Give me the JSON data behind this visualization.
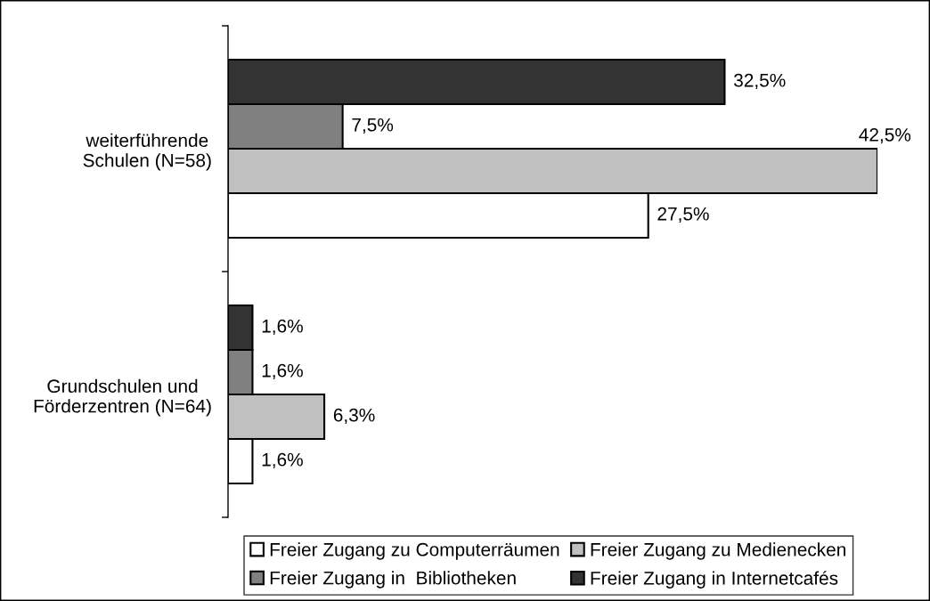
{
  "chart_data": {
    "type": "bar",
    "orientation": "horizontal",
    "categories": [
      "weiterführende\nSchulen (N=58)",
      "Grundschulen und\nFörderzentren (N=64)"
    ],
    "series": [
      {
        "name": "Freier Zugang zu Computerräumen",
        "color": "#ffffff",
        "values": [
          27.5,
          1.6
        ],
        "value_labels": [
          "27,5%",
          "1,6%"
        ]
      },
      {
        "name": "Freier Zugang zu Medienecken",
        "color": "#c0c0c0",
        "values": [
          42.5,
          6.3
        ],
        "value_labels": [
          "42,5%",
          "6,3%"
        ]
      },
      {
        "name": "Freier Zugang in  Bibliotheken",
        "color": "#808080",
        "values": [
          7.5,
          1.6
        ],
        "value_labels": [
          "7,5%",
          "1,6%"
        ]
      },
      {
        "name": "Freier Zugang in Internetcafés",
        "color": "#333333",
        "values": [
          32.5,
          1.6
        ],
        "value_labels": [
          "32,5%",
          "1,6%"
        ]
      }
    ],
    "tick_labels": "y",
    "legend": "bottom"
  }
}
